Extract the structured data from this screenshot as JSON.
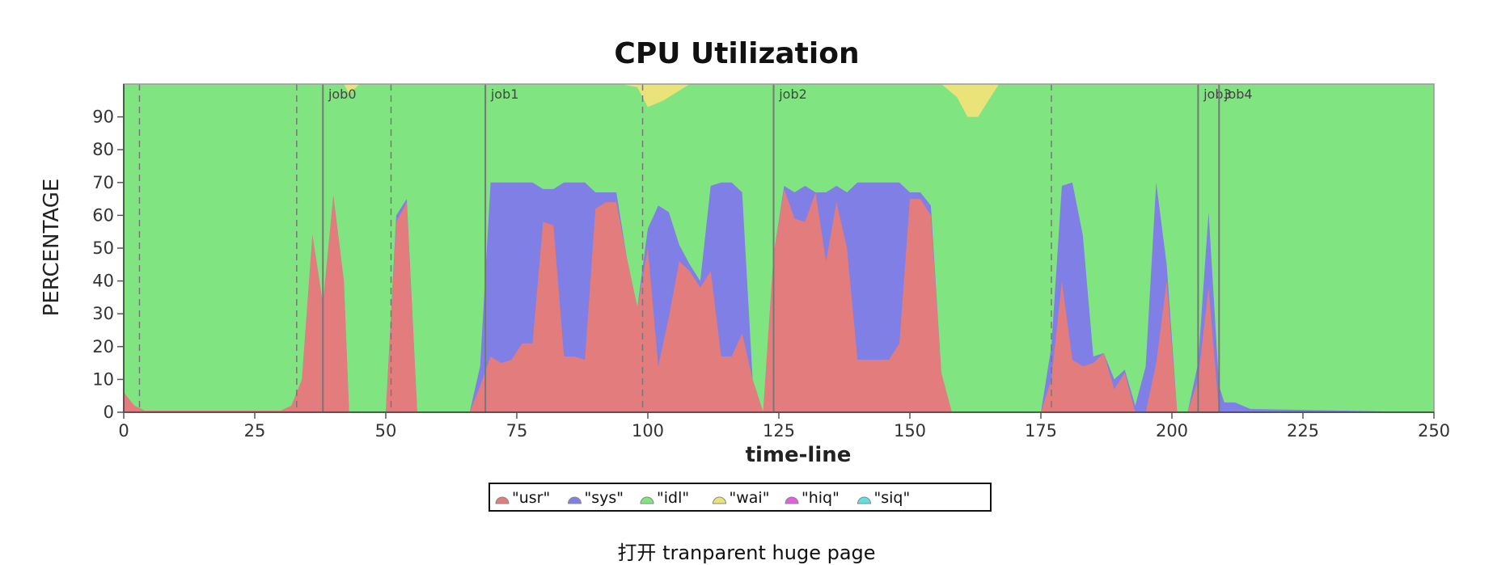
{
  "chart_data": {
    "type": "area",
    "title": "CPU Utilization",
    "xlabel": "time-line",
    "ylabel": "PERCENTAGE",
    "xlim": [
      0,
      250
    ],
    "ylim": [
      0,
      100
    ],
    "x_ticks": [
      0,
      25,
      50,
      75,
      100,
      125,
      150,
      175,
      200,
      225,
      250
    ],
    "y_ticks": [
      0,
      10,
      20,
      30,
      40,
      50,
      60,
      70,
      80,
      90
    ],
    "legend_position": "bottom",
    "colors": {
      "usr": "#e37c7c",
      "sys": "#7f7fe6",
      "idl": "#80e580",
      "wai": "#eae37a",
      "hiq": "#e060e0",
      "siq": "#60e0e0",
      "axis": "#555555",
      "markers": "#777777"
    },
    "series": [
      {
        "name": "\"usr\"",
        "key": "usr",
        "points": [
          [
            0,
            6
          ],
          [
            2,
            2
          ],
          [
            4,
            0.5
          ],
          [
            30,
            0.5
          ],
          [
            32,
            2
          ],
          [
            34,
            10
          ],
          [
            36,
            54
          ],
          [
            38,
            33
          ],
          [
            40,
            66
          ],
          [
            42,
            40
          ],
          [
            43,
            0
          ],
          [
            50,
            0
          ],
          [
            52,
            58
          ],
          [
            54,
            64
          ],
          [
            56,
            0
          ],
          [
            66,
            0
          ],
          [
            68,
            8
          ],
          [
            70,
            17
          ],
          [
            72,
            15
          ],
          [
            74,
            16
          ],
          [
            76,
            21
          ],
          [
            78,
            21
          ],
          [
            80,
            58
          ],
          [
            82,
            57
          ],
          [
            84,
            17
          ],
          [
            86,
            17
          ],
          [
            88,
            16
          ],
          [
            90,
            62
          ],
          [
            92,
            64
          ],
          [
            94,
            64
          ],
          [
            96,
            47
          ],
          [
            98,
            32
          ],
          [
            100,
            50
          ],
          [
            102,
            14
          ],
          [
            104,
            29
          ],
          [
            106,
            46
          ],
          [
            108,
            43
          ],
          [
            110,
            38
          ],
          [
            112,
            43
          ],
          [
            114,
            17
          ],
          [
            116,
            17
          ],
          [
            118,
            24
          ],
          [
            120,
            10
          ],
          [
            122,
            0
          ],
          [
            124,
            48
          ],
          [
            126,
            68
          ],
          [
            128,
            59
          ],
          [
            130,
            58
          ],
          [
            132,
            67
          ],
          [
            134,
            46
          ],
          [
            136,
            64
          ],
          [
            138,
            50
          ],
          [
            140,
            16
          ],
          [
            142,
            16
          ],
          [
            144,
            16
          ],
          [
            146,
            16
          ],
          [
            148,
            21
          ],
          [
            150,
            65
          ],
          [
            152,
            65
          ],
          [
            154,
            60
          ],
          [
            156,
            12
          ],
          [
            158,
            0
          ],
          [
            175,
            0
          ],
          [
            177,
            10
          ],
          [
            179,
            40
          ],
          [
            181,
            16
          ],
          [
            183,
            14
          ],
          [
            185,
            15
          ],
          [
            187,
            18
          ],
          [
            189,
            7
          ],
          [
            191,
            12
          ],
          [
            193,
            0
          ],
          [
            195,
            0
          ],
          [
            197,
            15
          ],
          [
            199,
            40
          ],
          [
            201,
            0
          ],
          [
            203,
            0
          ],
          [
            205,
            10
          ],
          [
            207,
            38
          ],
          [
            209,
            0
          ],
          [
            212,
            0
          ],
          [
            250,
            0
          ]
        ]
      },
      {
        "name": "\"sys\"",
        "key": "sys",
        "points": [
          [
            0,
            6
          ],
          [
            2,
            2
          ],
          [
            4,
            0.5
          ],
          [
            30,
            0.5
          ],
          [
            32,
            2
          ],
          [
            34,
            10
          ],
          [
            36,
            54
          ],
          [
            38,
            33
          ],
          [
            40,
            66
          ],
          [
            42,
            40
          ],
          [
            43,
            0
          ],
          [
            50,
            0
          ],
          [
            52,
            60
          ],
          [
            54,
            65
          ],
          [
            56,
            0
          ],
          [
            66,
            0
          ],
          [
            68,
            14
          ],
          [
            70,
            70
          ],
          [
            72,
            70
          ],
          [
            74,
            70
          ],
          [
            76,
            70
          ],
          [
            78,
            70
          ],
          [
            80,
            68
          ],
          [
            82,
            68
          ],
          [
            84,
            70
          ],
          [
            86,
            70
          ],
          [
            88,
            70
          ],
          [
            90,
            67
          ],
          [
            92,
            67
          ],
          [
            94,
            67
          ],
          [
            96,
            47
          ],
          [
            98,
            32
          ],
          [
            100,
            56
          ],
          [
            102,
            63
          ],
          [
            104,
            61
          ],
          [
            106,
            51
          ],
          [
            108,
            45
          ],
          [
            110,
            40
          ],
          [
            112,
            69
          ],
          [
            114,
            70
          ],
          [
            116,
            70
          ],
          [
            118,
            67
          ],
          [
            120,
            10
          ],
          [
            122,
            0
          ],
          [
            124,
            48
          ],
          [
            126,
            69
          ],
          [
            128,
            67
          ],
          [
            130,
            69
          ],
          [
            132,
            67
          ],
          [
            134,
            67
          ],
          [
            136,
            69
          ],
          [
            138,
            67
          ],
          [
            140,
            70
          ],
          [
            142,
            70
          ],
          [
            144,
            70
          ],
          [
            146,
            70
          ],
          [
            148,
            70
          ],
          [
            150,
            67
          ],
          [
            152,
            67
          ],
          [
            154,
            63
          ],
          [
            156,
            12
          ],
          [
            158,
            0
          ],
          [
            175,
            0
          ],
          [
            177,
            20
          ],
          [
            179,
            69
          ],
          [
            181,
            70
          ],
          [
            183,
            54
          ],
          [
            185,
            17
          ],
          [
            187,
            18
          ],
          [
            189,
            10
          ],
          [
            191,
            13
          ],
          [
            193,
            2
          ],
          [
            195,
            14
          ],
          [
            197,
            70
          ],
          [
            199,
            45
          ],
          [
            201,
            0
          ],
          [
            203,
            0
          ],
          [
            205,
            15
          ],
          [
            207,
            61
          ],
          [
            209,
            8
          ],
          [
            210,
            3
          ],
          [
            212,
            3
          ],
          [
            215,
            1
          ],
          [
            250,
            0
          ]
        ]
      },
      {
        "name": "\"idl\"",
        "key": "idl",
        "points": [
          [
            0,
            100
          ],
          [
            250,
            100
          ]
        ]
      },
      {
        "name": "\"wai\"",
        "key": "wai",
        "points": [
          [
            0,
            0
          ],
          [
            42,
            0
          ],
          [
            43,
            3
          ],
          [
            45,
            0
          ],
          [
            95,
            0
          ],
          [
            98,
            1
          ],
          [
            100,
            7
          ],
          [
            103,
            5
          ],
          [
            105,
            3
          ],
          [
            108,
            0
          ],
          [
            156,
            0
          ],
          [
            159,
            4
          ],
          [
            161,
            10
          ],
          [
            163,
            10
          ],
          [
            165,
            5
          ],
          [
            167,
            0
          ],
          [
            250,
            0
          ]
        ]
      },
      {
        "name": "\"hiq\"",
        "key": "hiq",
        "points": [
          [
            0,
            0
          ],
          [
            250,
            0
          ]
        ]
      },
      {
        "name": "\"siq\"",
        "key": "siq",
        "points": [
          [
            0,
            0
          ],
          [
            250,
            0
          ]
        ]
      }
    ],
    "job_markers": [
      {
        "label": "job0",
        "x": 38
      },
      {
        "label": "job1",
        "x": 69
      },
      {
        "label": "job2",
        "x": 124
      },
      {
        "label": "job3",
        "x": 205
      },
      {
        "label": "job4",
        "x": 209
      }
    ],
    "dashed_markers": [
      3,
      33,
      51,
      99,
      177
    ]
  },
  "caption": "打开 tranparent huge page"
}
